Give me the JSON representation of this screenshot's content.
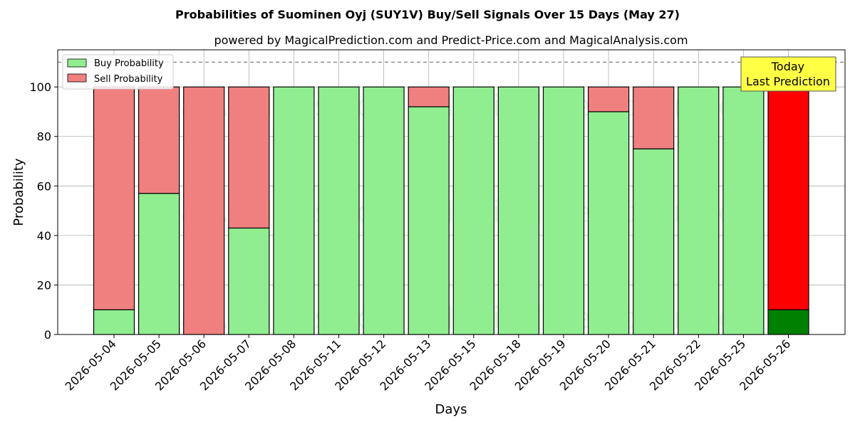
{
  "chart_data": {
    "type": "bar",
    "stacked": true,
    "title": "Probabilities of Suominen Oyj (SUY1V) Buy/Sell Signals Over 15 Days (May 27)",
    "subtitle": "powered by MagicalPrediction.com and Predict-Price.com and MagicalAnalysis.com",
    "xlabel": "Days",
    "ylabel": "Probability",
    "ylim": [
      0,
      115
    ],
    "yticks": [
      0,
      20,
      40,
      60,
      80,
      100
    ],
    "grid": true,
    "legend_position": "top-left",
    "reference_line": 110,
    "categories": [
      "2026-05-04",
      "2026-05-05",
      "2026-05-06",
      "2026-05-07",
      "2026-05-08",
      "2026-05-11",
      "2026-05-12",
      "2026-05-13",
      "2026-05-15",
      "2026-05-18",
      "2026-05-19",
      "2026-05-20",
      "2026-05-21",
      "2026-05-22",
      "2026-05-25",
      "2026-05-26"
    ],
    "series": [
      {
        "name": "Buy Probability",
        "color": "#90ee90",
        "values": [
          10,
          57,
          0,
          43,
          100,
          100,
          100,
          92,
          100,
          100,
          100,
          90,
          75,
          100,
          100,
          10
        ]
      },
      {
        "name": "Sell Probability",
        "color": "#f08080",
        "values": [
          90,
          43,
          100,
          57,
          0,
          0,
          0,
          8,
          0,
          0,
          0,
          10,
          25,
          0,
          0,
          90
        ]
      }
    ],
    "highlight": {
      "index": 15,
      "buy_color": "#008000",
      "sell_color": "#ff0000"
    },
    "annotation": {
      "lines": [
        "Today",
        "Last Prediction"
      ],
      "bg": "#ffff44"
    },
    "watermarks": [
      "MagicalAnalysis.com",
      "MagicalPrediction.com"
    ]
  }
}
